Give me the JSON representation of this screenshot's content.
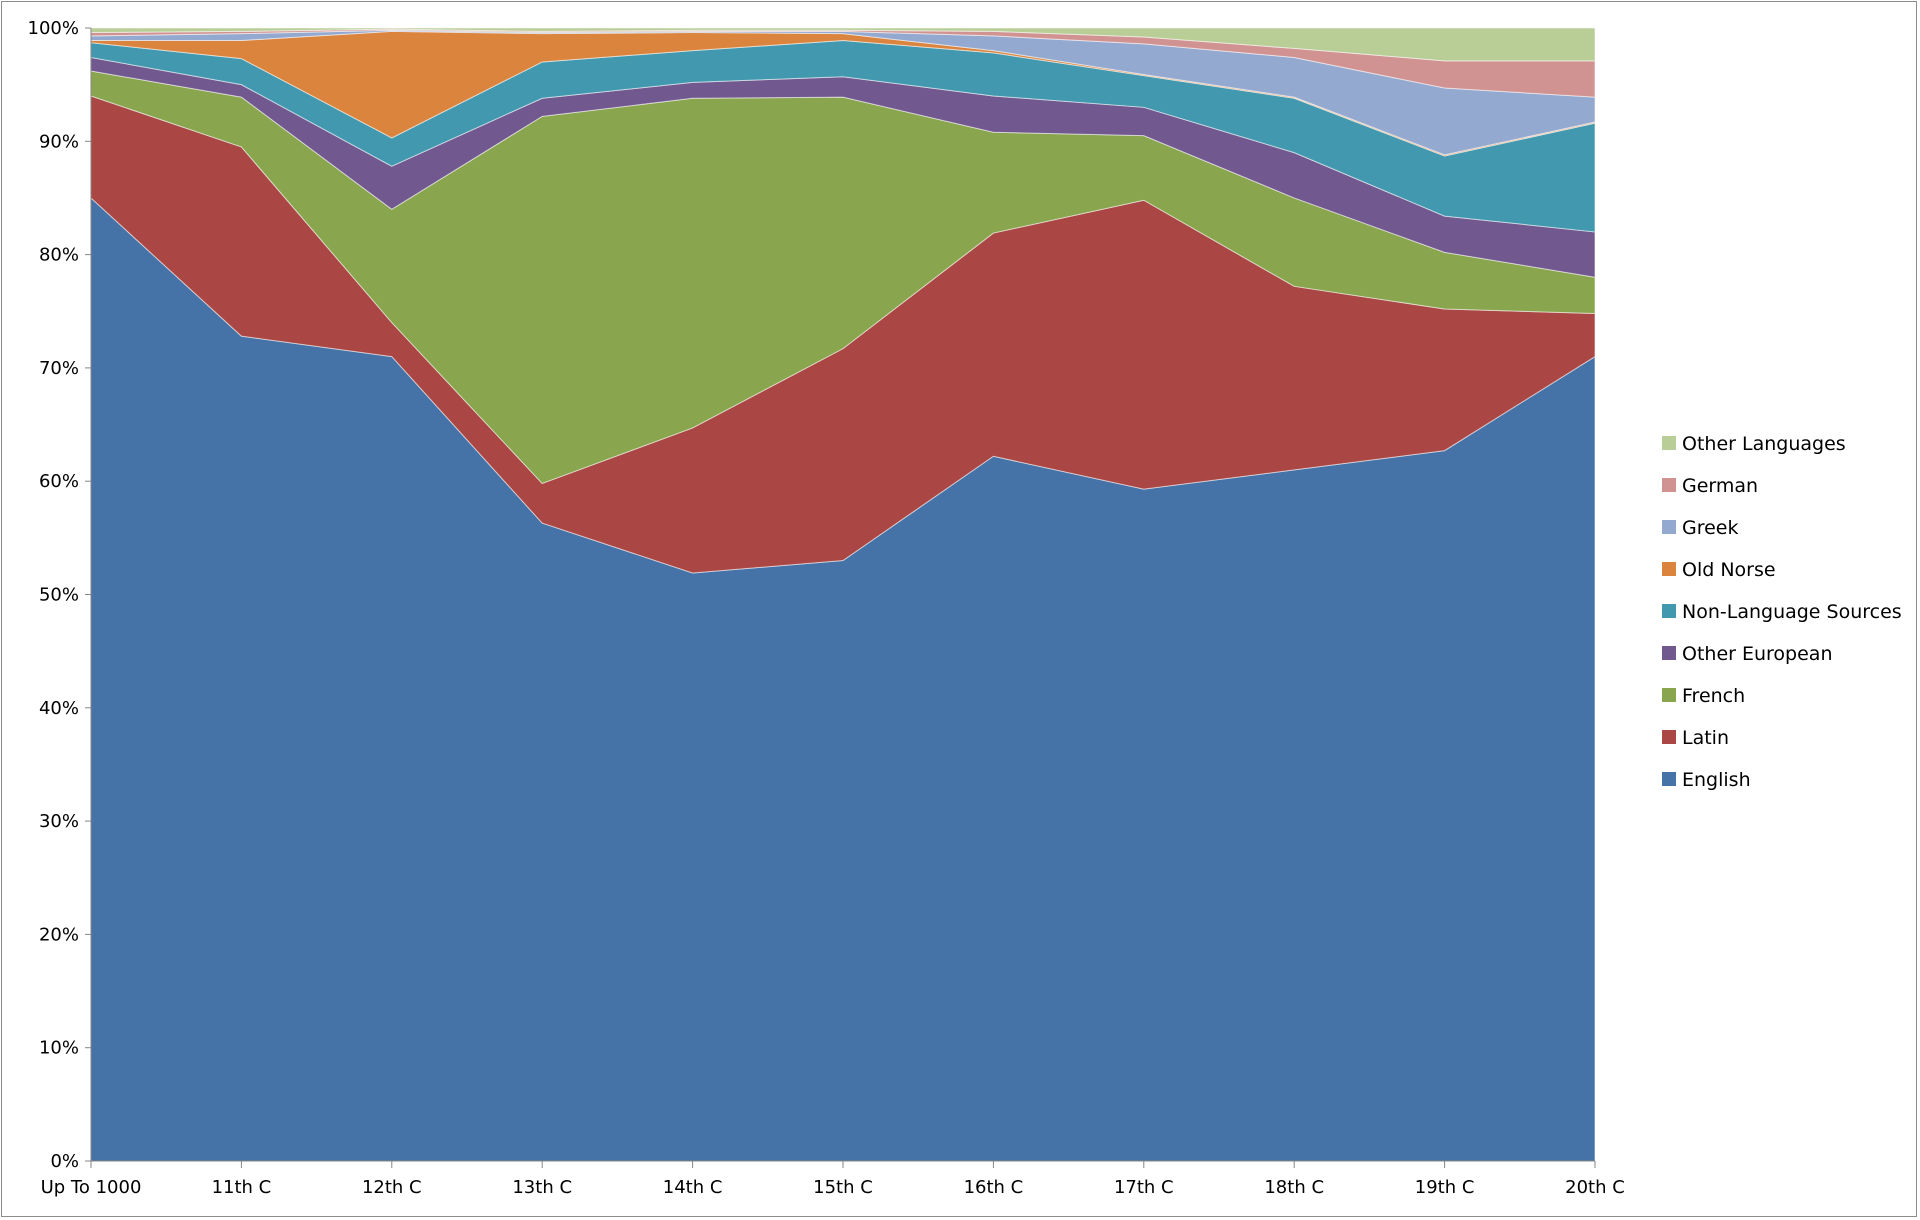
{
  "chart_data": {
    "type": "area",
    "stacked": true,
    "normalized": true,
    "categories": [
      "Up To 1000",
      "11th C",
      "12th C",
      "13th C",
      "14th C",
      "15th C",
      "16th C",
      "17th C",
      "18th C",
      "19th C",
      "20th C"
    ],
    "series": [
      {
        "name": "English",
        "color": "#4572a7",
        "values": [
          85,
          72.8,
          71,
          56.3,
          51.9,
          53,
          62.2,
          59.3,
          61,
          62.7,
          71
        ]
      },
      {
        "name": "Latin",
        "color": "#aa4643",
        "values": [
          9,
          16.7,
          3,
          3.5,
          12.8,
          18.7,
          19.7,
          25.5,
          16.2,
          12.5,
          3.8
        ]
      },
      {
        "name": "French",
        "color": "#89a54e",
        "values": [
          2.2,
          4.4,
          10,
          32.4,
          29.1,
          22.2,
          8.9,
          5.7,
          7.8,
          5,
          3.2
        ]
      },
      {
        "name": "Other European",
        "color": "#71588f",
        "values": [
          1.2,
          1.1,
          3.8,
          1.6,
          1.4,
          1.8,
          3.2,
          2.5,
          4,
          3.2,
          4
        ]
      },
      {
        "name": "Non-Language Sources",
        "color": "#4198af",
        "values": [
          1.3,
          2.3,
          2.5,
          3.2,
          2.8,
          3.2,
          3.8,
          2.8,
          4.8,
          5.3,
          9.6
        ]
      },
      {
        "name": "Old Norse",
        "color": "#db843d",
        "values": [
          0.2,
          1.6,
          9.4,
          2.5,
          1.6,
          0.6,
          0.2,
          0.1,
          0.1,
          0.1,
          0.1
        ]
      },
      {
        "name": "Greek",
        "color": "#93a9cf",
        "values": [
          0.4,
          0.6,
          0.1,
          0.1,
          0.1,
          0.2,
          1.3,
          2.7,
          3.5,
          5.9,
          2.2
        ]
      },
      {
        "name": "German",
        "color": "#d19392",
        "values": [
          0.3,
          0.2,
          0.1,
          0.1,
          0.1,
          0.1,
          0.4,
          0.6,
          0.8,
          2.4,
          3.2
        ]
      },
      {
        "name": "Other Languages",
        "color": "#b9cd96",
        "values": [
          0.4,
          0.3,
          0.1,
          0.3,
          0.2,
          0.2,
          0.3,
          0.8,
          1.8,
          2.9,
          2.9
        ]
      }
    ],
    "y_ticks": [
      "0%",
      "10%",
      "20%",
      "30%",
      "40%",
      "50%",
      "60%",
      "70%",
      "80%",
      "90%",
      "100%"
    ],
    "ylim": [
      0,
      100
    ],
    "legend_position": "right",
    "legend_order": [
      "Other Languages",
      "German",
      "Greek",
      "Old Norse",
      "Non-Language Sources",
      "Other European",
      "French",
      "Latin",
      "English"
    ],
    "grid": false
  }
}
